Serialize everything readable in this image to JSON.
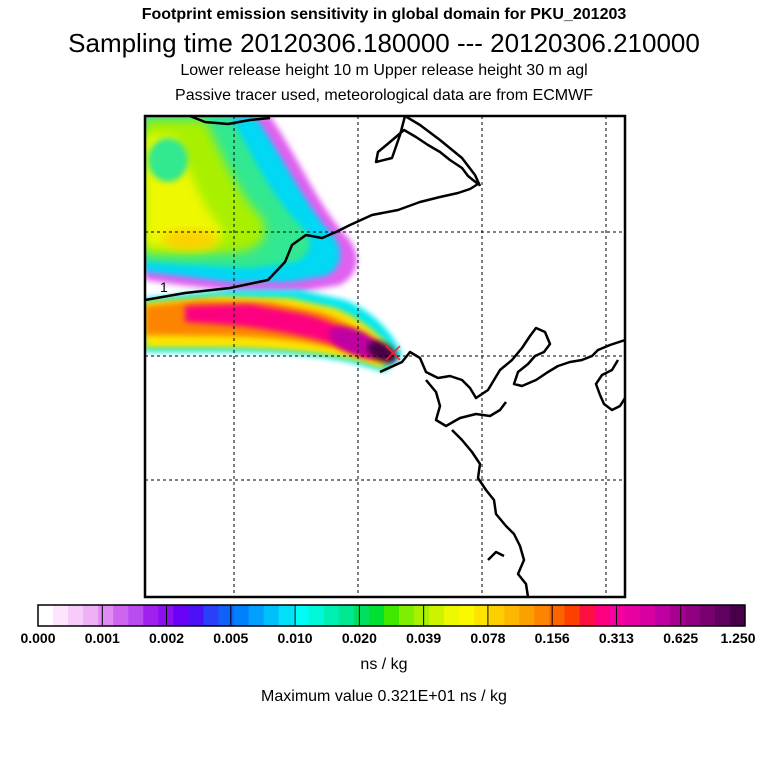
{
  "header": {
    "title": "Footprint emission sensitivity in global domain for PKU_201203",
    "sampling": "Sampling time   20120306.180000 --- 20120306.210000",
    "release": "Lower release height   10 m          Upper release height   30 m    agl",
    "tracer": "Passive tracer used, meteorological data are from ECMWF"
  },
  "map": {
    "contour_label": "1",
    "release_point_marker": "x"
  },
  "colorbar": {
    "labels": [
      "0.000",
      "0.001",
      "0.002",
      "0.005",
      "0.010",
      "0.020",
      "0.039",
      "0.078",
      "0.156",
      "0.313",
      "0.625",
      "1.250"
    ],
    "colors": [
      "#ffffff",
      "#fde6fd",
      "#f8ccf8",
      "#f0b0f6",
      "#e08cf2",
      "#cc66f0",
      "#b84cee",
      "#a020f0",
      "#8a10f2",
      "#6a00f4",
      "#4c10f6",
      "#2a40f8",
      "#1060fa",
      "#0080fc",
      "#00a0fc",
      "#00c0fc",
      "#00e0f8",
      "#00fcf4",
      "#00f8d8",
      "#00f0b4",
      "#00e890",
      "#00e060",
      "#00e030",
      "#40e800",
      "#80ee00",
      "#a8f000",
      "#ccf400",
      "#eef800",
      "#fcf800",
      "#fce400",
      "#fcd000",
      "#fcb800",
      "#fca000",
      "#fc8400",
      "#fc6400",
      "#fc4000",
      "#fc1040",
      "#fc0080",
      "#f800a0",
      "#e800a0",
      "#d800a0",
      "#c000a0",
      "#a80090",
      "#900080",
      "#780070",
      "#600060",
      "#480048"
    ],
    "units": "ns / kg",
    "maximum": "Maximum value  0.321E+01 ns / kg"
  }
}
